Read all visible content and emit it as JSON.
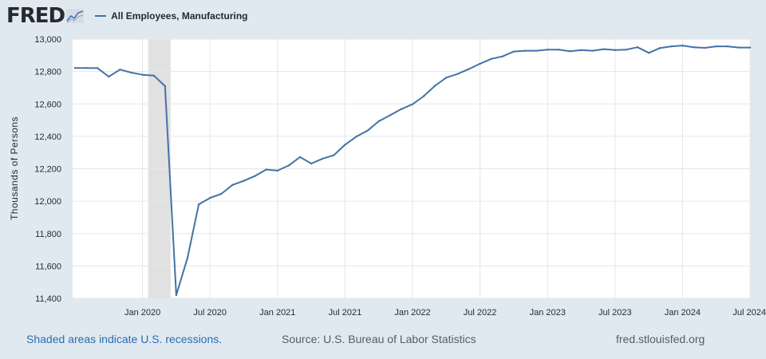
{
  "header": {
    "logo_text": "FRED",
    "legend_label": "All Employees, Manufacturing"
  },
  "colors": {
    "series": "#4572a7",
    "recession": "#e1e1e1",
    "grid": "#e6e6e6",
    "background": "#e1e9f0",
    "plot_background": "#ffffff"
  },
  "footer": {
    "recession_note": "Shaded areas indicate U.S. recessions.",
    "source": "Source: U.S. Bureau of Labor Statistics",
    "site": "fred.stlouisfed.org"
  },
  "chart_data": {
    "type": "line",
    "title": "All Employees, Manufacturing",
    "xlabel": "",
    "ylabel": "Thousands of Persons",
    "ylim": [
      11400,
      13000
    ],
    "y_ticks": [
      11400,
      11600,
      11800,
      12000,
      12200,
      12400,
      12600,
      12800,
      13000
    ],
    "y_tick_labels": [
      "11,400",
      "11,600",
      "11,800",
      "12,000",
      "12,200",
      "12,400",
      "12,600",
      "12,800",
      "13,000"
    ],
    "x_start": "2019-07",
    "x_ticks": [
      {
        "label": "Jan 2020",
        "index": 6
      },
      {
        "label": "Jul 2020",
        "index": 12
      },
      {
        "label": "Jan 2021",
        "index": 18
      },
      {
        "label": "Jul 2021",
        "index": 24
      },
      {
        "label": "Jan 2022",
        "index": 30
      },
      {
        "label": "Jul 2022",
        "index": 36
      },
      {
        "label": "Jan 2023",
        "index": 42
      },
      {
        "label": "Jul 2023",
        "index": 48
      },
      {
        "label": "Jan 2024",
        "index": 54
      },
      {
        "label": "Jul 2024",
        "index": 60
      }
    ],
    "recessions": [
      {
        "start_index": 7,
        "end_index": 9
      }
    ],
    "grid": true,
    "series": [
      {
        "name": "All Employees, Manufacturing",
        "values": [
          12822,
          12822,
          12821,
          12768,
          12812,
          12793,
          12780,
          12775,
          12710,
          11420,
          11650,
          11980,
          12020,
          12045,
          12100,
          12125,
          12155,
          12195,
          12188,
          12220,
          12272,
          12232,
          12262,
          12283,
          12348,
          12398,
          12435,
          12493,
          12530,
          12568,
          12598,
          12648,
          12712,
          12762,
          12785,
          12815,
          12848,
          12878,
          12893,
          12923,
          12928,
          12928,
          12935,
          12935,
          12925,
          12932,
          12928,
          12938,
          12932,
          12935,
          12950,
          12915,
          12945,
          12955,
          12960,
          12950,
          12946,
          12955,
          12955,
          12948,
          12948
        ]
      }
    ]
  }
}
